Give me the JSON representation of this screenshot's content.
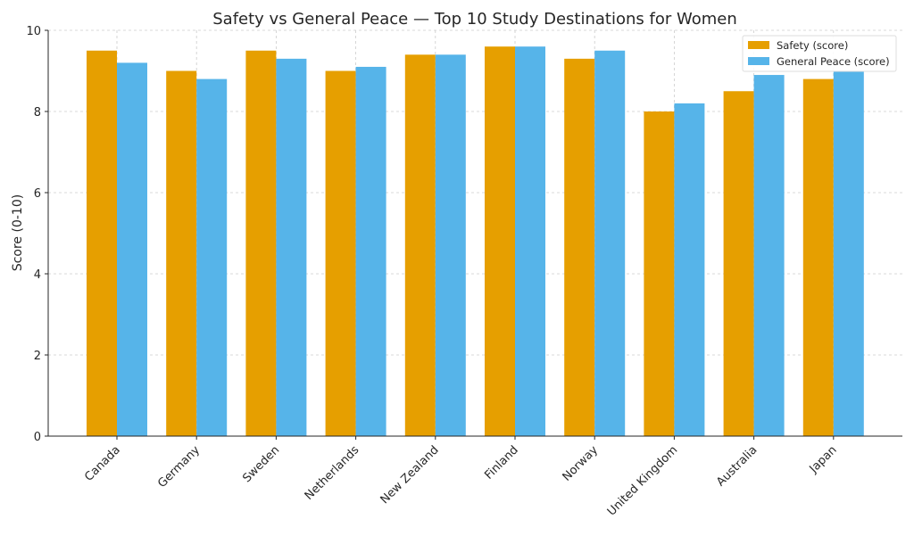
{
  "chart_data": {
    "type": "bar",
    "title": "Safety vs General Peace — Top 10 Study Destinations for Women",
    "xlabel": "",
    "ylabel": "Score (0-10)",
    "ylim": [
      0,
      10
    ],
    "yticks": [
      0,
      2,
      4,
      6,
      8,
      10
    ],
    "grid": true,
    "legend_placement": "top-right",
    "categories": [
      "Canada",
      "Germany",
      "Sweden",
      "Netherlands",
      "New Zealand",
      "Finland",
      "Norway",
      "United Kingdom",
      "Australia",
      "Japan"
    ],
    "series": [
      {
        "name": "Safety (score)",
        "color": "#E69F00",
        "values": [
          9.5,
          9.0,
          9.5,
          9.0,
          9.4,
          9.6,
          9.3,
          8.0,
          8.5,
          8.8
        ]
      },
      {
        "name": "General Peace (score)",
        "color": "#56B4E9",
        "values": [
          9.2,
          8.8,
          9.3,
          9.1,
          9.4,
          9.6,
          9.5,
          8.2,
          8.9,
          9.0
        ]
      }
    ]
  }
}
